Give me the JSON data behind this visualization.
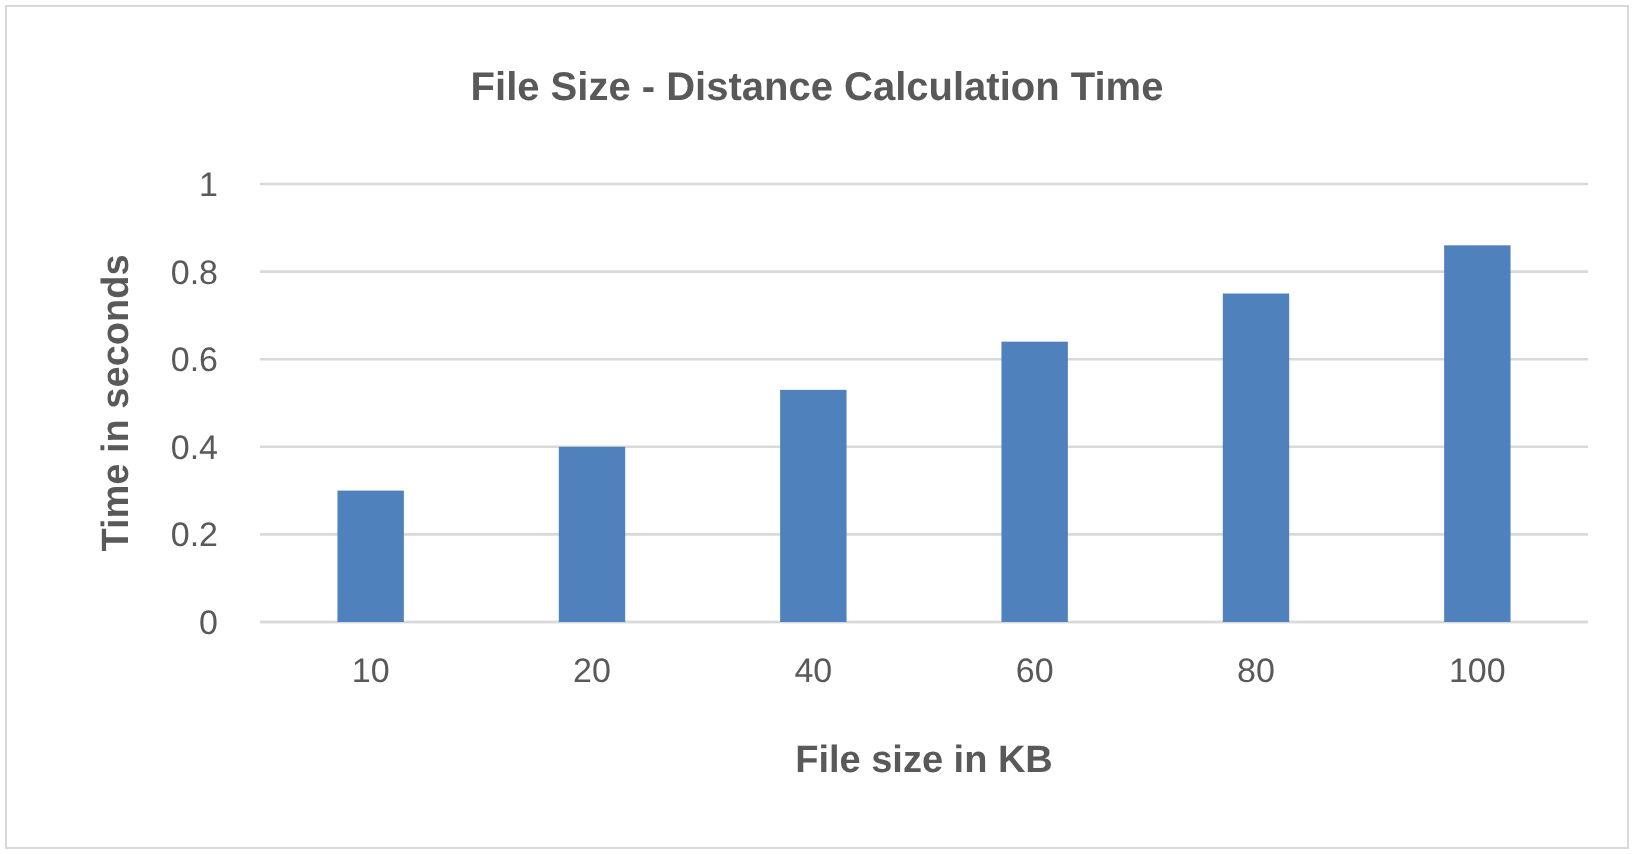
{
  "chart_data": {
    "type": "bar",
    "title": "File Size - Distance Calculation Time",
    "xlabel": "File size in KB",
    "ylabel": "Time in seconds",
    "categories": [
      "10",
      "20",
      "40",
      "60",
      "80",
      "100"
    ],
    "values": [
      0.3,
      0.4,
      0.53,
      0.64,
      0.75,
      0.86
    ],
    "color": "#4f81bd",
    "ylim": [
      0,
      1
    ],
    "yticks": [
      0,
      0.2,
      0.4,
      0.6,
      0.8,
      1
    ],
    "grid": "y"
  }
}
